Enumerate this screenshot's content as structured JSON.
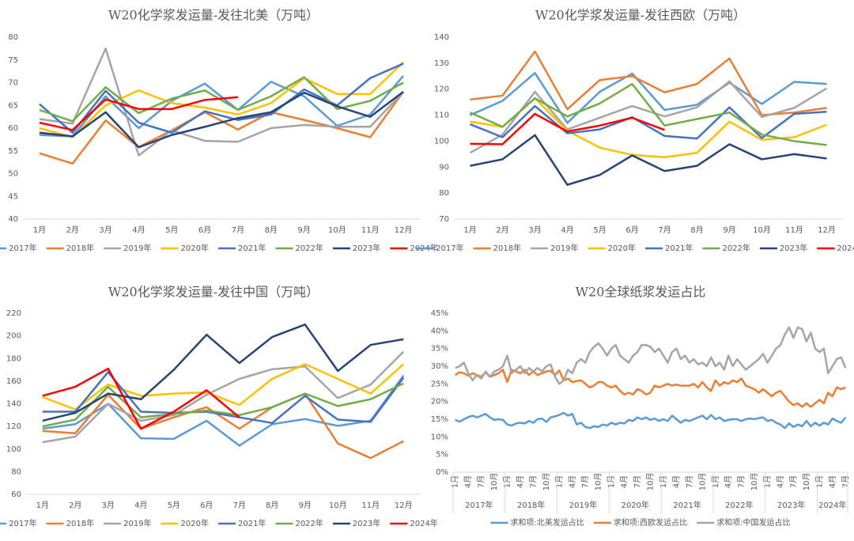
{
  "chart_data": [
    {
      "type": "line",
      "title": "W20化学浆发运量-发往北美（万吨）",
      "legend": "bottom",
      "grid": false,
      "categories": [
        "1月",
        "2月",
        "3月",
        "4月",
        "5月",
        "6月",
        "7月",
        "8月",
        "9月",
        "10月",
        "11月",
        "12月"
      ],
      "ylim": [
        40,
        80
      ],
      "yticks": [
        40,
        45,
        50,
        55,
        60,
        65,
        70,
        75,
        80
      ],
      "series": [
        {
          "name": "2017年",
          "color": "#5b9bd5",
          "values": [
            58.5,
            58.2,
            67,
            60,
            66,
            69.8,
            64,
            70.2,
            67,
            60.5,
            63,
            71.5
          ]
        },
        {
          "name": "2018年",
          "color": "#ed7d31",
          "values": [
            54.5,
            52.2,
            61.7,
            55.8,
            59.5,
            63.5,
            59.7,
            63.5,
            61.8,
            60,
            58,
            68
          ]
        },
        {
          "name": "2019年",
          "color": "#a5a5a5",
          "values": [
            62,
            61,
            77.5,
            54,
            59.5,
            57.2,
            57,
            60,
            60.7,
            60.3,
            60.3,
            68
          ]
        },
        {
          "name": "2020年",
          "color": "#ffc000",
          "values": [
            60,
            58,
            65,
            68.3,
            65.5,
            64.5,
            63,
            65.5,
            71,
            67.5,
            67.5,
            74.5
          ]
        },
        {
          "name": "2021年",
          "color": "#4472c4",
          "values": [
            65.3,
            59,
            68.2,
            61.2,
            59,
            63.7,
            61.8,
            63,
            68.5,
            65,
            71,
            74.2
          ]
        },
        {
          "name": "2022年",
          "color": "#70ad47",
          "values": [
            64,
            61.5,
            69,
            63.3,
            66.5,
            68.3,
            64,
            67,
            71.2,
            64.2,
            66,
            70
          ]
        },
        {
          "name": "2023年",
          "color": "#264478",
          "values": [
            59,
            58.2,
            63.5,
            55.8,
            58.5,
            60.3,
            62.2,
            63.5,
            67.8,
            64.8,
            62.5,
            68
          ]
        },
        {
          "name": "2024年",
          "color": "#ff0000",
          "values": [
            61.2,
            59.6,
            66.3,
            64.2,
            64.2,
            66.2,
            66.8,
            null,
            null,
            null,
            null,
            null
          ]
        }
      ]
    },
    {
      "type": "line",
      "title": "W20化学浆发运量-发往西欧（万吨）",
      "legend": "bottom",
      "grid": false,
      "categories": [
        "1月",
        "2月",
        "3月",
        "4月",
        "5月",
        "6月",
        "7月",
        "8月",
        "9月",
        "10月",
        "11月",
        "12月"
      ],
      "ylim": [
        70,
        140
      ],
      "yticks": [
        70,
        80,
        90,
        100,
        110,
        120,
        130,
        140
      ],
      "series": [
        {
          "name": "2017年",
          "color": "#5b9bd5",
          "values": [
            110,
            115.5,
            126.2,
            107,
            119,
            126,
            112,
            114,
            122.5,
            114.3,
            122.8,
            122
          ]
        },
        {
          "name": "2018年",
          "color": "#ed7d31",
          "values": [
            116,
            117.5,
            134.5,
            112.3,
            123.5,
            125,
            118.8,
            122,
            131.8,
            110,
            111,
            112.8
          ]
        },
        {
          "name": "2019年",
          "color": "#a5a5a5",
          "values": [
            95.5,
            102.5,
            119,
            104.5,
            109,
            113.5,
            109.5,
            113,
            123,
            109.3,
            112.8,
            120.3
          ]
        },
        {
          "name": "2020年",
          "color": "#ffc000",
          "values": [
            107.5,
            105.5,
            116.5,
            104,
            97.5,
            94.7,
            93.8,
            95.5,
            107.5,
            100.5,
            101.5,
            106.3
          ]
        },
        {
          "name": "2021年",
          "color": "#4472c4",
          "values": [
            106.5,
            101.5,
            113.5,
            103,
            104.5,
            109.2,
            102,
            101,
            113,
            101.2,
            110.5,
            111.3
          ]
        },
        {
          "name": "2022年",
          "color": "#70ad47",
          "values": [
            111,
            105.5,
            116.5,
            109.5,
            114.5,
            122,
            106,
            108.5,
            111,
            102.5,
            100,
            98.5
          ]
        },
        {
          "name": "2023年",
          "color": "#264478",
          "values": [
            90.5,
            93,
            102.3,
            83.2,
            87,
            94.5,
            88.5,
            90.5,
            98.8,
            93,
            95,
            93.3
          ]
        },
        {
          "name": "2024年",
          "color": "#ff0000",
          "values": [
            99,
            98.8,
            110.5,
            103.7,
            106,
            109,
            104.3,
            null,
            null,
            null,
            null,
            null
          ]
        }
      ]
    },
    {
      "type": "line",
      "title": "W20化学浆发运量-发往中国（万吨）",
      "legend": "bottom",
      "grid": false,
      "categories": [
        "1月",
        "2月",
        "3月",
        "4月",
        "5月",
        "6月",
        "7月",
        "8月",
        "9月",
        "10月",
        "11月",
        "12月"
      ],
      "ylim": [
        60,
        220
      ],
      "yticks": [
        60,
        80,
        100,
        120,
        140,
        160,
        180,
        200,
        220
      ],
      "series": [
        {
          "name": "2017年",
          "color": "#5b9bd5",
          "values": [
            118,
            122,
            140,
            109.5,
            109,
            125,
            103,
            122,
            126.5,
            120.5,
            125,
            165
          ]
        },
        {
          "name": "2018年",
          "color": "#ed7d31",
          "values": [
            116,
            114,
            148,
            118,
            128,
            137,
            118,
            137,
            149,
            105,
            92,
            107
          ]
        },
        {
          "name": "2019年",
          "color": "#a5a5a5",
          "values": [
            106,
            111,
            140,
            125,
            130,
            148,
            162,
            170.5,
            173,
            145,
            157,
            186
          ]
        },
        {
          "name": "2020年",
          "color": "#ffc000",
          "values": [
            146,
            135,
            157,
            147,
            149,
            150,
            139,
            162,
            175,
            162,
            149,
            175
          ]
        },
        {
          "name": "2021年",
          "color": "#4472c4",
          "values": [
            133,
            133,
            168,
            133,
            132,
            133,
            128,
            123,
            147,
            126,
            124,
            163
          ]
        },
        {
          "name": "2022年",
          "color": "#70ad47",
          "values": [
            120,
            126,
            155,
            128,
            131,
            134,
            130,
            137,
            149,
            138,
            144,
            158
          ]
        },
        {
          "name": "2023年",
          "color": "#264478",
          "values": [
            125,
            132,
            149,
            144,
            170,
            201,
            176,
            199,
            210,
            169,
            192,
            197
          ]
        },
        {
          "name": "2024年",
          "color": "#ff0000",
          "values": [
            147,
            155,
            171,
            118,
            133,
            152,
            128,
            null,
            null,
            null,
            null,
            null
          ]
        }
      ]
    },
    {
      "type": "line",
      "title": "W20全球纸浆发运占比",
      "legend": "bottom",
      "grid": false,
      "categories": [
        "1月",
        null,
        null,
        "4月",
        null,
        null,
        "7月",
        null,
        null,
        "10月",
        null,
        null,
        "1月",
        null,
        null,
        "4月",
        null,
        null,
        "7月",
        null,
        null,
        "10月",
        null,
        null,
        "1月",
        null,
        null,
        "4月",
        null,
        null,
        "7月",
        null,
        null,
        "10月",
        null,
        null,
        "1月",
        null,
        null,
        "4月",
        null,
        null,
        "7月",
        null,
        null,
        "10月",
        null,
        null,
        "1月",
        null,
        null,
        "4月",
        null,
        null,
        "7月",
        null,
        null,
        "10月",
        null,
        null,
        "1月",
        null,
        null,
        "4月",
        null,
        null,
        "7月",
        null,
        null,
        "10月",
        null,
        null,
        "1月",
        null,
        null,
        "4月",
        null,
        null,
        "7月",
        null,
        null,
        "10月",
        null,
        null,
        "1月",
        null,
        null,
        "4月",
        null,
        null,
        "7月"
      ],
      "years": [
        "2017年",
        "2018年",
        "2019年",
        "2020年",
        "2021年",
        "2022年",
        "2023年",
        "2024年"
      ],
      "ylim": [
        0,
        45
      ],
      "yticks": [
        {
          "value": 0,
          "label": "0%"
        },
        {
          "value": 5,
          "label": "5%"
        },
        {
          "value": 10,
          "label": "10%"
        },
        {
          "value": 15,
          "label": "15%"
        },
        {
          "value": 20,
          "label": "20%"
        },
        {
          "value": 25,
          "label": "25%"
        },
        {
          "value": 30,
          "label": "30%"
        },
        {
          "value": 35,
          "label": "35%"
        },
        {
          "value": 40,
          "label": "40%"
        },
        {
          "value": 45,
          "label": "45%"
        }
      ],
      "series": [
        {
          "name": "求和项:北美发运占比",
          "color": "#5b9bd5",
          "values": [
            14.8,
            14.3,
            15,
            15.6,
            16,
            15.5,
            16,
            16.5,
            15.5,
            14.8,
            15,
            14.8,
            13.5,
            13.2,
            13.8,
            14,
            13.8,
            14.5,
            14,
            15,
            15.2,
            14.2,
            15.5,
            15.8,
            16.2,
            16.8,
            16,
            16.5,
            13.5,
            14,
            12.8,
            12.5,
            13,
            12.8,
            13.5,
            13.2,
            14,
            13.5,
            14,
            13.8,
            14.8,
            14.5,
            15.5,
            15,
            15.5,
            14.8,
            15.2,
            14.5,
            15,
            14.5,
            16,
            15,
            14,
            14.8,
            14.5,
            15,
            15.5,
            16,
            15,
            16.2,
            15,
            15.5,
            14.5,
            14.8,
            15,
            15,
            14.5,
            15,
            15.2,
            15,
            15.3,
            15.5,
            14.5,
            14.8,
            14,
            13.5,
            12.5,
            13.8,
            12.8,
            13.5,
            13,
            14.5,
            13,
            14,
            13.2,
            14,
            13.5,
            15.2,
            14.5,
            14,
            15.5
          ]
        },
        {
          "name": "求和项:西欧发运占比",
          "color": "#ed7d31",
          "values": [
            27.5,
            28.3,
            28,
            27.3,
            28,
            27.5,
            27,
            28.3,
            27,
            27.5,
            28,
            29,
            25.5,
            29,
            28.5,
            28,
            29,
            27.5,
            28.5,
            27.5,
            28,
            28.5,
            28.7,
            27.5,
            28.8,
            26,
            26.5,
            25.5,
            25.8,
            26,
            25,
            24,
            24.5,
            25.5,
            25.5,
            24.5,
            24,
            24.5,
            23,
            22,
            22.5,
            22,
            23.5,
            23,
            22,
            22.5,
            24.5,
            24,
            24.5,
            25,
            24.5,
            24.8,
            24.5,
            24.5,
            24.5,
            25,
            24,
            25.5,
            24,
            23,
            26,
            24.5,
            25.5,
            25,
            26,
            25.5,
            26.5,
            24.5,
            24,
            23.5,
            22.5,
            23.5,
            22.5,
            21.5,
            22.5,
            23,
            21.5,
            20,
            19,
            19.5,
            18.5,
            19.5,
            18.5,
            19.5,
            20.5,
            19.5,
            22.5,
            21.5,
            24,
            23.5,
            24
          ]
        },
        {
          "name": "求和项:中国发运占比",
          "color": "#a5a5a5",
          "values": [
            29.5,
            30,
            31,
            28,
            26,
            27.5,
            26.5,
            28.5,
            27,
            28.5,
            29,
            30,
            33,
            28,
            29,
            30,
            28,
            29.5,
            28.5,
            29.5,
            28.5,
            30,
            30.5,
            27,
            25,
            26,
            29,
            28,
            31,
            32,
            31,
            34,
            35.5,
            36.5,
            35,
            33,
            35,
            36,
            33,
            32,
            31,
            33,
            34,
            36,
            36,
            35.5,
            34,
            35,
            33,
            31,
            34,
            35,
            32,
            33,
            31,
            32,
            30.5,
            31,
            30,
            32.5,
            30,
            31,
            29,
            33,
            30,
            32,
            30.5,
            29,
            30,
            31,
            32,
            33.5,
            31,
            33,
            35,
            36,
            39,
            41,
            38,
            41,
            40.5,
            37,
            39.5,
            35,
            34,
            35,
            28,
            30,
            32,
            32.5,
            29.5
          ]
        }
      ]
    }
  ]
}
